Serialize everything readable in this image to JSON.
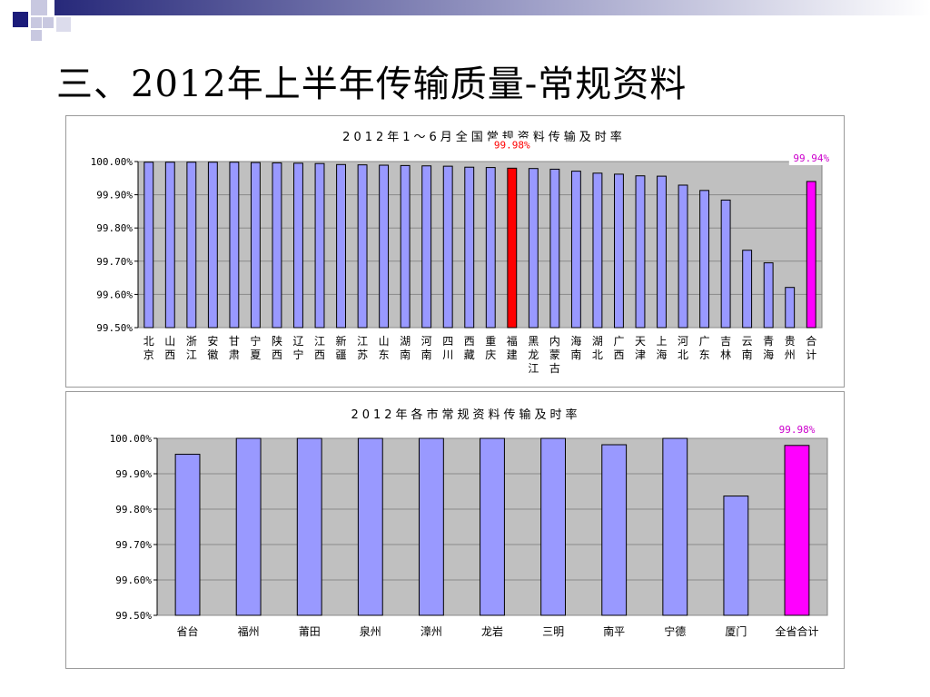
{
  "slide": {
    "title": "三、2012年上半年传输质量-常规资料"
  },
  "colors": {
    "bar_default": "#9999ff",
    "bar_highlight_red": "#ff0000",
    "bar_highlight_magenta": "#ff00ff",
    "plot_bg": "#c0c0c0",
    "label_red": "#ff0000",
    "label_magenta": "#cc00cc"
  },
  "chart_data": [
    {
      "type": "bar",
      "title": "2012年1～6月全国常规资料传输及时率",
      "categories": [
        "北京",
        "山西",
        "浙江",
        "安徽",
        "甘肃",
        "宁夏",
        "陕西",
        "辽宁",
        "江西",
        "新疆",
        "江苏",
        "山东",
        "湖南",
        "河南",
        "四川",
        "西藏",
        "重庆",
        "福建",
        "黑龙江",
        "内蒙古",
        "海南",
        "湖北",
        "广西",
        "天津",
        "上海",
        "河北",
        "广东",
        "吉林",
        "云南",
        "青海",
        "贵州",
        "合计"
      ],
      "values": [
        99.998,
        99.998,
        99.998,
        99.998,
        99.998,
        99.997,
        99.996,
        99.995,
        99.994,
        99.991,
        99.99,
        99.989,
        99.988,
        99.987,
        99.986,
        99.983,
        99.982,
        99.98,
        99.979,
        99.977,
        99.971,
        99.965,
        99.962,
        99.957,
        99.956,
        99.929,
        99.913,
        99.884,
        99.733,
        99.695,
        99.621,
        99.94
      ],
      "highlight": {
        "福建": "red",
        "合计": "magenta"
      },
      "data_labels": [
        {
          "category": "福建",
          "text": "99.98%"
        },
        {
          "category": "合计",
          "text": "99.94%"
        }
      ],
      "ylim": [
        99.5,
        100.0
      ],
      "yticks": [
        "100.00%",
        "99.90%",
        "99.80%",
        "99.70%",
        "99.60%",
        "99.50%"
      ],
      "grid": true,
      "xlabel": "",
      "ylabel": ""
    },
    {
      "type": "bar",
      "title": "2012年各市常规资料传输及时率",
      "categories": [
        "省台",
        "福州",
        "莆田",
        "泉州",
        "漳州",
        "龙岩",
        "三明",
        "南平",
        "宁德",
        "厦门",
        "全省合计"
      ],
      "values": [
        99.955,
        100.0,
        100.0,
        100.0,
        100.0,
        100.0,
        100.0,
        99.982,
        100.0,
        99.837,
        99.98
      ],
      "highlight": {
        "全省合计": "magenta"
      },
      "data_labels": [
        {
          "category": "全省合计",
          "text": "99.98%"
        }
      ],
      "ylim": [
        99.5,
        100.0
      ],
      "yticks": [
        "100.00%",
        "99.90%",
        "99.80%",
        "99.70%",
        "99.60%",
        "99.50%"
      ],
      "grid": true,
      "xlabel": "",
      "ylabel": ""
    }
  ]
}
